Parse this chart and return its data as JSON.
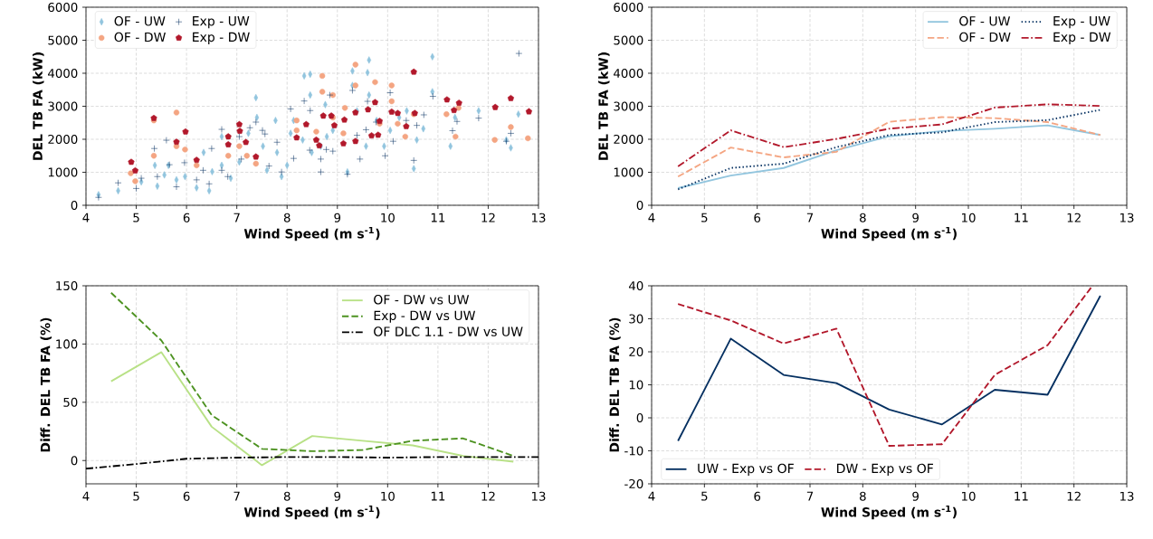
{
  "chart_data": [
    {
      "type": "scatter",
      "xlabel": "Wind Speed (m s$^{-1}$)",
      "ylabel": "DEL TB FA (kW)",
      "xlim": [
        4,
        13
      ],
      "ylim": [
        0,
        6000
      ],
      "xticks": [
        4,
        5,
        6,
        7,
        8,
        9,
        10,
        11,
        12,
        13
      ],
      "yticks": [
        0,
        1000,
        2000,
        3000,
        4000,
        5000,
        6000
      ],
      "grid": true,
      "legend": "top left",
      "series": [
        {
          "name": "OF - UW",
          "color": "#92c5de",
          "marker": "diamond",
          "x": [
            4.25,
            4.64,
            5.1,
            5.37,
            5.42,
            5.56,
            5.64,
            5.8,
            5.97,
            6.2,
            6.34,
            6.45,
            6.51,
            6.7,
            6.7,
            6.88,
            7.05,
            7.23,
            7.38,
            7.4,
            7.52,
            7.6,
            7.77,
            7.8,
            7.89,
            8.0,
            8.07,
            8.13,
            8.31,
            8.34,
            8.46,
            8.46,
            8.49,
            8.67,
            8.76,
            8.79,
            8.91,
            9.2,
            9.3,
            9.3,
            9.39,
            9.6,
            9.63,
            9.63,
            9.57,
            9.78,
            9.93,
            10.05,
            10.23,
            10.38,
            10.52,
            10.58,
            10.71,
            10.89,
            10.89,
            11.25,
            11.34,
            11.81,
            12.36,
            12.45,
            12.6
          ],
          "values": [
            320,
            440,
            710,
            1210,
            580,
            920,
            1210,
            770,
            870,
            530,
            1600,
            440,
            1020,
            1210,
            2080,
            820,
            1310,
            2180,
            3260,
            2660,
            1790,
            1060,
            2570,
            1600,
            870,
            1210,
            2180,
            2570,
            1980,
            3920,
            3970,
            3340,
            1600,
            1790,
            3050,
            2080,
            2270,
            1010,
            4070,
            3630,
            2860,
            4020,
            4400,
            3340,
            1790,
            2570,
            1790,
            2270,
            2660,
            2860,
            1110,
            1980,
            2320,
            4500,
            3440,
            1790,
            2660,
            2860,
            1980,
            1740,
            2760
          ]
        },
        {
          "name": "OF - DW",
          "color": "#f4a582",
          "marker": "circle",
          "x": [
            4.89,
            4.98,
            5.35,
            5.35,
            5.8,
            5.8,
            5.97,
            6.2,
            6.83,
            7.05,
            7.2,
            7.38,
            8.19,
            8.19,
            8.58,
            8.7,
            8.7,
            8.91,
            8.91,
            9.12,
            9.15,
            9.36,
            9.36,
            9.75,
            9.84,
            10.08,
            10.08,
            10.2,
            10.35,
            10.52,
            11.17,
            11.35,
            11.41,
            12.13,
            12.45,
            12.79
          ],
          "values": [
            970,
            730,
            2570,
            1500,
            2810,
            1790,
            1690,
            1210,
            1500,
            1790,
            1500,
            1260,
            2570,
            2270,
            2230,
            3920,
            3440,
            3340,
            2660,
            2180,
            2950,
            4260,
            3630,
            3730,
            2470,
            3630,
            3150,
            2470,
            2080,
            2760,
            2760,
            2080,
            2950,
            1980,
            2370,
            2030
          ]
        },
        {
          "name": "Exp - UW",
          "color": "#053061",
          "marker": "cross",
          "x": [
            4.25,
            4.64,
            5.0,
            5.1,
            5.36,
            5.42,
            5.6,
            5.66,
            5.8,
            5.96,
            6.2,
            6.33,
            6.45,
            6.5,
            6.7,
            6.7,
            6.82,
            7.05,
            7.09,
            7.26,
            7.38,
            7.51,
            7.56,
            7.64,
            7.8,
            7.89,
            8.07,
            8.13,
            8.34,
            8.45,
            8.46,
            8.67,
            8.67,
            8.85,
            8.78,
            8.91,
            9.2,
            9.3,
            9.39,
            9.45,
            9.6,
            9.57,
            9.77,
            9.95,
            10.05,
            10.11,
            10.37,
            10.52,
            10.58,
            10.72,
            10.9,
            11.29,
            11.38,
            11.81,
            12.36,
            12.45,
            12.61
          ],
          "values": [
            240,
            680,
            510,
            820,
            1720,
            870,
            1970,
            1230,
            560,
            1290,
            770,
            1060,
            650,
            1720,
            2300,
            1060,
            870,
            2080,
            1400,
            2350,
            2520,
            2270,
            2160,
            1190,
            1910,
            1010,
            2920,
            1420,
            3160,
            1670,
            2870,
            1010,
            1400,
            3340,
            1690,
            1640,
            940,
            3480,
            2120,
            1400,
            3150,
            2290,
            2520,
            1500,
            3410,
            1940,
            2570,
            1360,
            2420,
            2740,
            3300,
            2260,
            2540,
            2640,
            1940,
            2180,
            4600
          ]
        },
        {
          "name": "Exp - DW",
          "color": "#b2182b",
          "x": [
            4.9,
            4.98,
            5.35,
            5.8,
            5.98,
            6.2,
            6.83,
            6.83,
            7.05,
            7.06,
            7.18,
            7.38,
            8.19,
            8.38,
            8.58,
            8.64,
            8.72,
            8.88,
            8.94,
            9.12,
            9.14,
            9.36,
            9.36,
            9.61,
            9.75,
            9.68,
            9.81,
            9.84,
            10.08,
            10.2,
            10.37,
            10.52,
            10.54,
            11.18,
            11.32,
            11.42,
            12.14,
            12.45,
            12.81
          ],
          "values": [
            1310,
            1050,
            2640,
            1920,
            2230,
            1370,
            2080,
            1840,
            2450,
            2250,
            1910,
            1470,
            2050,
            2450,
            1980,
            1810,
            2710,
            2710,
            2420,
            1870,
            2590,
            2810,
            1940,
            2900,
            3120,
            2110,
            2130,
            2550,
            2830,
            2790,
            2390,
            4040,
            2790,
            3200,
            2880,
            3100,
            2970,
            3240,
            2840
          ]
        }
      ]
    },
    {
      "type": "line",
      "xlabel": "Wind Speed (m s$^{-1}$)",
      "ylabel": "DEL TB FA (kW)",
      "xlim": [
        4,
        13
      ],
      "ylim": [
        0,
        6000
      ],
      "xticks": [
        4,
        5,
        6,
        7,
        8,
        9,
        10,
        11,
        12,
        13
      ],
      "yticks": [
        0,
        1000,
        2000,
        3000,
        4000,
        5000,
        6000
      ],
      "grid": true,
      "legend": "top right",
      "x": [
        4.5,
        5.5,
        6.5,
        7.5,
        8.5,
        9.5,
        10.5,
        11.5,
        12.5
      ],
      "series": [
        {
          "name": "OF - UW",
          "color": "#92c5de",
          "line_style": "solid",
          "values": [
            520,
            900,
            1130,
            1670,
            2090,
            2250,
            2320,
            2420,
            2130
          ]
        },
        {
          "name": "OF - DW",
          "color": "#f4a582",
          "line_style": "dashed",
          "values": [
            870,
            1750,
            1450,
            1620,
            2530,
            2670,
            2640,
            2520,
            2130
          ]
        },
        {
          "name": "Exp - UW",
          "color": "#053061",
          "line_style": "dotted",
          "values": [
            480,
            1130,
            1260,
            1760,
            2130,
            2210,
            2520,
            2580,
            2890
          ]
        },
        {
          "name": "Exp - DW",
          "color": "#b2182b",
          "line_style": "dashdot",
          "values": [
            1180,
            2270,
            1760,
            2010,
            2320,
            2450,
            2960,
            3060,
            3010
          ]
        }
      ]
    },
    {
      "type": "line",
      "xlabel": "Wind Speed (m s$^{-1}$)",
      "ylabel": "Diff. DEL TB FA (%)",
      "xlim": [
        4,
        13
      ],
      "ylim": [
        -20,
        150
      ],
      "xticks": [
        4,
        5,
        6,
        7,
        8,
        9,
        10,
        11,
        12,
        13
      ],
      "yticks": [
        0,
        50,
        100,
        150
      ],
      "grid": true,
      "legend": "top right",
      "x": [
        4.5,
        5.5,
        6.5,
        7.5,
        8.5,
        9.5,
        10.5,
        11.5,
        12.5
      ],
      "series": [
        {
          "name": "OF - DW vs UW",
          "color": "#b8e186",
          "line_style": "solid",
          "values": [
            68,
            93,
            29,
            -4,
            21,
            17,
            13,
            4,
            -1
          ]
        },
        {
          "name": "Exp - DW vs UW",
          "color": "#4d9221",
          "line_style": "dashed",
          "values": [
            144,
            103,
            39,
            10,
            8,
            9,
            17,
            19,
            4
          ]
        },
        {
          "name": "OF DLC 1.1 - DW vs UW",
          "color": "#000000",
          "line_style": "dashdot",
          "x": [
            4,
            5,
            6,
            7,
            8,
            9,
            10,
            11,
            12,
            13
          ],
          "values": [
            -7,
            -3,
            1.5,
            2.5,
            3,
            3,
            2.5,
            3,
            3,
            3
          ]
        }
      ]
    },
    {
      "type": "line",
      "xlabel": "Wind Speed (m s$^{-1}$)",
      "ylabel": "Diff. DEL TB FA (%)",
      "xlim": [
        4,
        13
      ],
      "ylim": [
        -20,
        40
      ],
      "xticks": [
        4,
        5,
        6,
        7,
        8,
        9,
        10,
        11,
        12,
        13
      ],
      "yticks": [
        -20,
        -10,
        0,
        10,
        20,
        30,
        40
      ],
      "grid": true,
      "legend": "bottom left",
      "x": [
        4.5,
        5.5,
        6.5,
        7.5,
        8.5,
        9.5,
        10.5,
        11.5,
        12.5
      ],
      "series": [
        {
          "name": "UW - Exp vs OF",
          "color": "#053061",
          "line_style": "solid",
          "values": [
            -7,
            24,
            13,
            10.5,
            2.5,
            -2,
            8.5,
            7,
            37
          ]
        },
        {
          "name": "DW - Exp vs OF",
          "color": "#b2182b",
          "line_style": "dashed",
          "x": [
            4.5,
            5.5,
            6.5,
            7.5,
            8.5,
            9.5,
            10.5,
            11.5,
            12.35
          ],
          "values": [
            34.5,
            29.5,
            22.5,
            27,
            -8.5,
            -8,
            13,
            22,
            40
          ]
        }
      ]
    }
  ]
}
